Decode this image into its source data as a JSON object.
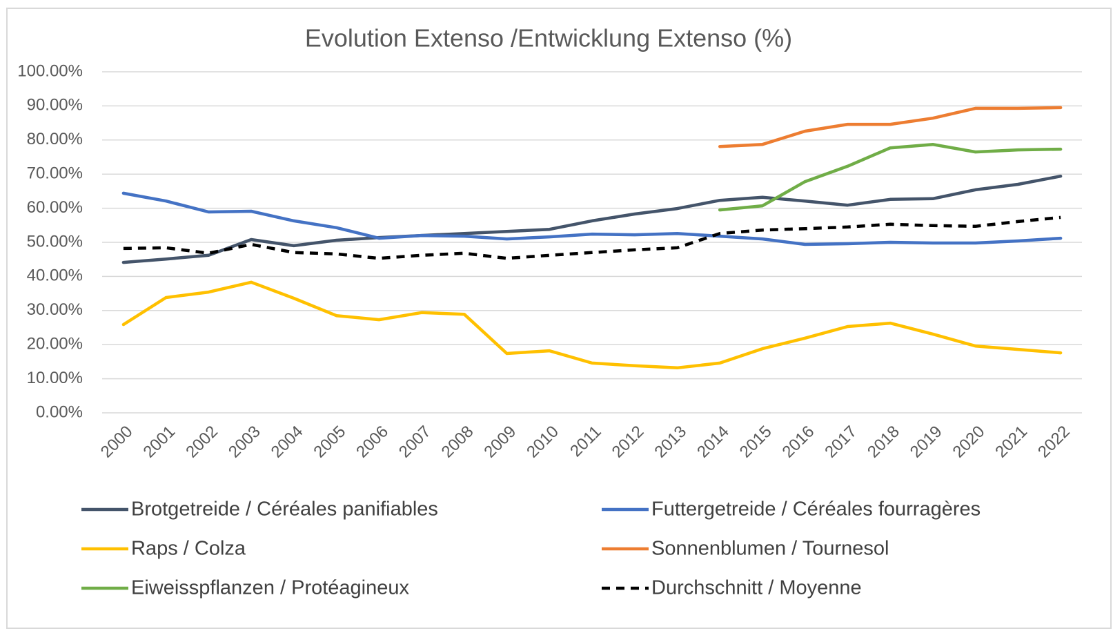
{
  "chart_data": {
    "type": "line",
    "title": "Evolution Extenso /Entwicklung Extenso (%)",
    "categories": [
      "2000",
      "2001",
      "2002",
      "2003",
      "2004",
      "2005",
      "2006",
      "2007",
      "2008",
      "2009",
      "2010",
      "2011",
      "2012",
      "2013",
      "2014",
      "2015",
      "2016",
      "2017",
      "2018",
      "2019",
      "2020",
      "2021",
      "2022"
    ],
    "series": [
      {
        "name": "Brotgetreide / Céréales panifiables",
        "color": "#44546a",
        "values": [
          44.1,
          45.1,
          46.2,
          50.8,
          49.0,
          50.6,
          51.4,
          52.0,
          52.6,
          53.2,
          53.8,
          56.3,
          58.3,
          59.9,
          62.3,
          63.2,
          62.1,
          60.9,
          62.6,
          62.8,
          65.4,
          67.0,
          69.4
        ]
      },
      {
        "name": "Futtergetreide / Céréales fourragères",
        "color": "#4472c4",
        "values": [
          64.4,
          62.1,
          58.9,
          59.1,
          56.3,
          54.3,
          51.2,
          52.0,
          51.8,
          51.0,
          51.6,
          52.4,
          52.2,
          52.6,
          51.8,
          51.0,
          49.4,
          49.6,
          50.0,
          49.8,
          49.8,
          50.4,
          51.2
        ]
      },
      {
        "name": "Raps / Colza",
        "color": "#ffc000",
        "values": [
          25.9,
          33.8,
          35.4,
          38.3,
          33.6,
          28.5,
          27.3,
          29.4,
          28.9,
          17.4,
          18.2,
          14.6,
          13.8,
          13.2,
          14.6,
          18.8,
          21.9,
          25.3,
          26.3,
          23.1,
          19.6,
          18.6,
          17.6
        ]
      },
      {
        "name": "Sonnenblumen / Tournesol",
        "color": "#ed7d31",
        "values": [
          null,
          null,
          null,
          null,
          null,
          null,
          null,
          null,
          null,
          null,
          null,
          null,
          null,
          null,
          78.1,
          78.7,
          82.6,
          84.6,
          84.6,
          86.4,
          89.3,
          89.3,
          89.5
        ]
      },
      {
        "name": "Eiweisspflanzen / Protéagineux",
        "color": "#70ad47",
        "values": [
          null,
          null,
          null,
          null,
          null,
          null,
          null,
          null,
          null,
          null,
          null,
          null,
          null,
          null,
          59.5,
          60.7,
          67.8,
          72.3,
          77.7,
          78.7,
          76.5,
          77.1,
          77.3
        ]
      },
      {
        "name": "Durchschnitt / Moyenne",
        "color": "#000000",
        "dashed": true,
        "values": [
          48.2,
          48.4,
          46.8,
          49.4,
          47.0,
          46.6,
          45.3,
          46.2,
          46.8,
          45.3,
          46.2,
          47.0,
          47.8,
          48.4,
          52.6,
          53.6,
          54.0,
          54.5,
          55.3,
          54.9,
          54.7,
          56.1,
          57.3
        ]
      }
    ],
    "ylim": [
      0,
      100
    ],
    "yticks": [
      {
        "value": 0,
        "label": "0.00%"
      },
      {
        "value": 10,
        "label": "10.00%"
      },
      {
        "value": 20,
        "label": "20.00%"
      },
      {
        "value": 30,
        "label": "30.00%"
      },
      {
        "value": 40,
        "label": "40.00%"
      },
      {
        "value": 50,
        "label": "50.00%"
      },
      {
        "value": 60,
        "label": "60.00%"
      },
      {
        "value": 70,
        "label": "70.00%"
      },
      {
        "value": 80,
        "label": "80.00%"
      },
      {
        "value": 90,
        "label": "90.00%"
      },
      {
        "value": 100,
        "label": "100.00%"
      }
    ],
    "grid": true,
    "legend": "bottom"
  }
}
